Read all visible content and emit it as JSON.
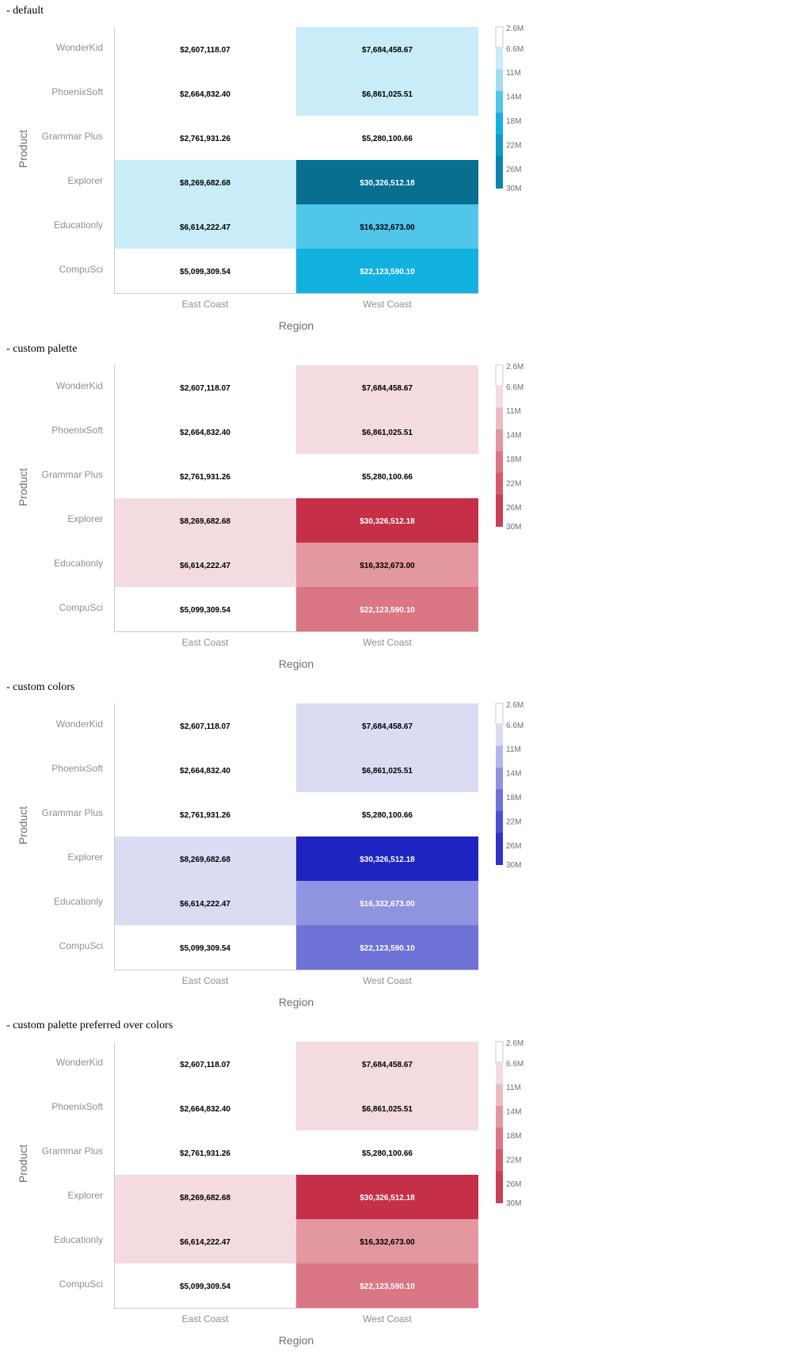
{
  "sections": [
    {
      "title": "- default",
      "palette": [
        "#ffffff",
        "#c8ecf8",
        "#a0dcf2",
        "#50c6ea",
        "#12b2e0",
        "#0e9ac7",
        "#0a84ad",
        "#086f90"
      ]
    },
    {
      "title": "- custom palette",
      "palette": [
        "#ffffff",
        "#f4dbe0",
        "#ebbcc4",
        "#e3979f",
        "#db7785",
        "#d35a6b",
        "#cb3f54",
        "#c52f48"
      ]
    },
    {
      "title": "- custom colors",
      "palette": [
        "#ffffff",
        "#dadcf4",
        "#b3b6ea",
        "#9094e0",
        "#6e72d6",
        "#4b50cc",
        "#2d33c4",
        "#1f24c0"
      ]
    },
    {
      "title": "- custom palette preferred over colors",
      "palette": [
        "#ffffff",
        "#f4dbe0",
        "#ebbcc4",
        "#e3979f",
        "#db7785",
        "#d35a6b",
        "#cb3f54",
        "#c52f48"
      ]
    }
  ],
  "chart_data": {
    "type": "heatmap",
    "x_categories": [
      "East Coast",
      "West Coast"
    ],
    "y_categories": [
      "WonderKid",
      "PhoenixSoft",
      "Grammar Plus",
      "Explorer",
      "Educationly",
      "CompuSci"
    ],
    "values": [
      [
        2607118.07,
        7684458.67
      ],
      [
        2664832.4,
        6861025.51
      ],
      [
        2761931.26,
        5280100.66
      ],
      [
        8269682.68,
        30326512.18
      ],
      [
        6614222.47,
        16332673.0
      ],
      [
        5099309.54,
        22123590.1
      ]
    ],
    "value_labels": [
      [
        "$2,607,118.07",
        "$7,684,458.67"
      ],
      [
        "$2,664,832.40",
        "$6,861,025.51"
      ],
      [
        "$2,761,931.26",
        "$5,280,100.66"
      ],
      [
        "$8,269,682.68",
        "$30,326,512.18"
      ],
      [
        "$6,614,222.47",
        "$16,332,673.00"
      ],
      [
        "$5,099,309.54",
        "$22,123,590.10"
      ]
    ],
    "xlabel": "Region",
    "ylabel": "Product",
    "legend": {
      "position": "right",
      "breaks": [
        2600000,
        6600000,
        11000000,
        14000000,
        18000000,
        22000000,
        26000000,
        30000000
      ],
      "tick_labels": [
        "2.6M",
        "6.6M",
        "11M",
        "14M",
        "18M",
        "22M",
        "26M",
        "30M"
      ]
    }
  }
}
